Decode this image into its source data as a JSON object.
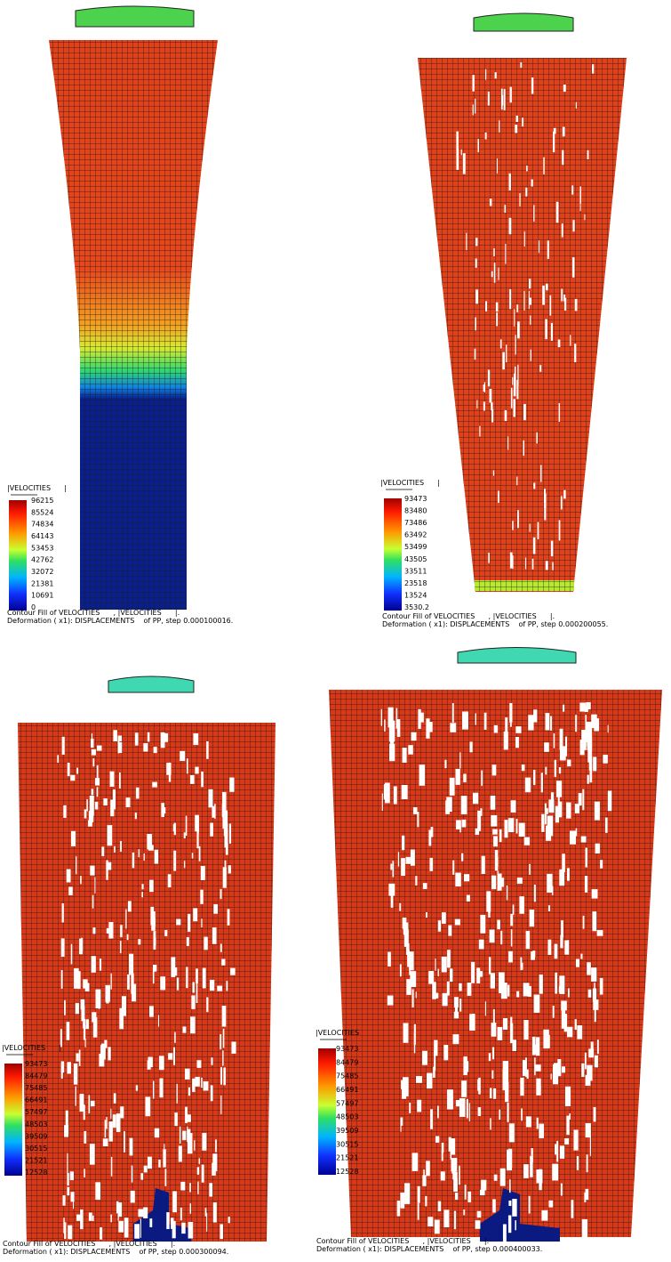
{
  "panels": [
    {
      "legend": {
        "title": "|VELOCITIES      |",
        "values": [
          "96215",
          "85524",
          "74834",
          "64143",
          "53453",
          "42762",
          "32072",
          "21381",
          "10691",
          "0"
        ]
      },
      "caption": [
        "Contour Fill of VELOCITIES      , |VELOCITIES      |.",
        "Deformation ( x1): DISPLACEMENTS    of PP, step 0.000100016."
      ]
    },
    {
      "legend": {
        "title": "|VELOCITIES      |",
        "values": [
          "93473",
          "83480",
          "73486",
          "63492",
          "53499",
          "43505",
          "33511",
          "23518",
          "13524",
          "3530.2"
        ]
      },
      "caption": [
        "Contour Fill of VELOCITIES      , |VELOCITIES      |.",
        "Deformation ( x1): DISPLACEMENTS    of PP, step 0.000200055."
      ]
    },
    {
      "legend": {
        "title": "|VELOCITIES      |",
        "values": [
          "93473",
          "84479",
          "75485",
          "66491",
          "57497",
          "48503",
          "39509",
          "30515",
          "21521",
          "12528"
        ]
      },
      "caption": [
        "Contour Fill of VELOCITIES      , |VELOCITIES      |.",
        "Deformation ( x1): DISPLACEMENTS    of PP, step 0.000300094."
      ]
    },
    {
      "legend": {
        "title": "|VELOCITIES",
        "values": [
          "93473",
          "84479",
          "75485",
          "66491",
          "57497",
          "48503",
          "39509",
          "30515",
          "21521",
          "12528"
        ]
      },
      "caption": [
        "Contour Fill of VELOCITIES      , |VELOCITIES      |.",
        "Deformation ( x1): DISPLACEMENTS    of PP, step 0.000400033."
      ]
    }
  ]
}
